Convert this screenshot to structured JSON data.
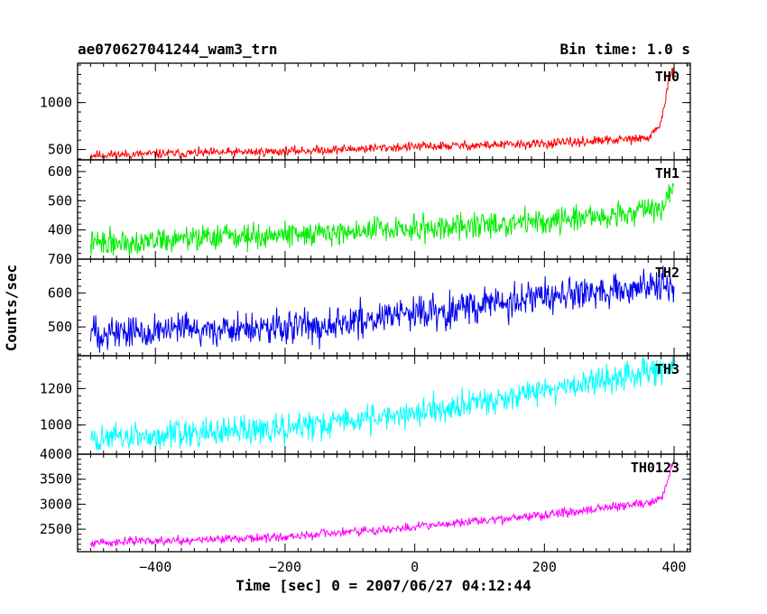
{
  "chart_data": {
    "type": "line",
    "title_left": "ae070627041244_wam3_trn",
    "title_right": "Bin time: 1.0 s",
    "xlabel": "Time [sec] 0 = 2007/06/27 04:12:44",
    "ylabel": "Counts/sec",
    "xlim": [
      -520,
      425
    ],
    "x_ticks": [
      -400,
      -200,
      0,
      200,
      400
    ],
    "x_tick_labels": [
      "−400",
      "−200",
      "0",
      "200",
      "400"
    ],
    "grid": false,
    "panels": [
      {
        "label": "TH0",
        "color": "#ff0000",
        "ylim": [
          390,
          1420
        ],
        "y_ticks": [
          500,
          1000
        ],
        "y_tick_labels": [
          "500",
          "1000"
        ],
        "trend": [
          [
            -500,
            440
          ],
          [
            -200,
            480
          ],
          [
            0,
            530
          ],
          [
            200,
            560
          ],
          [
            360,
            620
          ],
          [
            380,
            780
          ],
          [
            392,
            1250
          ],
          [
            400,
            1330
          ]
        ],
        "noise": 55,
        "seed": 11
      },
      {
        "label": "TH1",
        "color": "#00ee00",
        "ylim": [
          300,
          640
        ],
        "y_ticks": [
          400,
          500,
          600
        ],
        "y_tick_labels": [
          "400",
          "500",
          "600"
        ],
        "trend": [
          [
            -500,
            355
          ],
          [
            -200,
            385
          ],
          [
            0,
            405
          ],
          [
            200,
            430
          ],
          [
            380,
            470
          ],
          [
            400,
            560
          ]
        ],
        "noise": 48,
        "seed": 22
      },
      {
        "label": "TH2",
        "color": "#0000ee",
        "ylim": [
          415,
          700
        ],
        "y_ticks": [
          500,
          600,
          700
        ],
        "y_tick_labels": [
          "500",
          "600",
          "700"
        ],
        "trend": [
          [
            -500,
            485
          ],
          [
            -200,
            495
          ],
          [
            0,
            540
          ],
          [
            200,
            585
          ],
          [
            400,
            625
          ]
        ],
        "noise": 55,
        "seed": 33
      },
      {
        "label": "TH3",
        "color": "#00ffff",
        "ylim": [
          840,
          1380
        ],
        "y_ticks": [
          1000,
          1200
        ],
        "y_tick_labels": [
          "1000",
          "1200"
        ],
        "trend": [
          [
            -500,
            920
          ],
          [
            -200,
            980
          ],
          [
            0,
            1070
          ],
          [
            200,
            1190
          ],
          [
            400,
            1320
          ]
        ],
        "noise": 85,
        "seed": 44
      },
      {
        "label": "TH0123",
        "color": "#ff00ff",
        "ylim": [
          2050,
          4000
        ],
        "y_ticks": [
          2500,
          3000,
          3500,
          4000
        ],
        "y_tick_labels": [
          "2500",
          "3000",
          "3500",
          "4000"
        ],
        "trend": [
          [
            -500,
            2230
          ],
          [
            -200,
            2340
          ],
          [
            0,
            2540
          ],
          [
            200,
            2780
          ],
          [
            370,
            3050
          ],
          [
            385,
            3200
          ],
          [
            392,
            3600
          ],
          [
            400,
            3900
          ]
        ],
        "noise": 95,
        "seed": 55
      }
    ]
  }
}
